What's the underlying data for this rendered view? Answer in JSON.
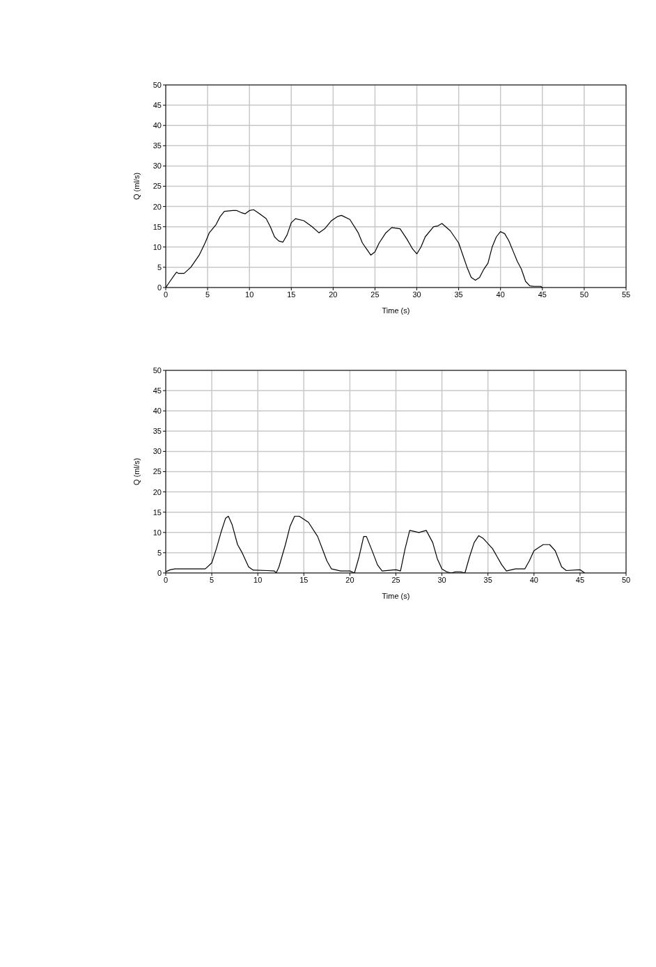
{
  "chart_data": [
    {
      "type": "line",
      "xlabel": "Time (s)",
      "ylabel": "Q (ml/s)",
      "xlim": [
        0,
        55
      ],
      "xticks": [
        0,
        5,
        10,
        15,
        20,
        25,
        30,
        35,
        40,
        45,
        50,
        55
      ],
      "ylim": [
        0,
        50
      ],
      "yticks": [
        0,
        5,
        10,
        15,
        20,
        25,
        30,
        35,
        40,
        45,
        50
      ],
      "grid": true,
      "marker": "none",
      "line_style": "solid",
      "series": [
        {
          "color": "#000000",
          "x": [
            0,
            0.5,
            1,
            1.3,
            1.5,
            2.2,
            3,
            4,
            4.7,
            5.2,
            6,
            6.5,
            7,
            8,
            8.5,
            9,
            9.5,
            10,
            10.5,
            11,
            12,
            12.5,
            13,
            13.5,
            14,
            14.5,
            15,
            15.5,
            16.5,
            17.5,
            18.3,
            19,
            19.8,
            20.5,
            21,
            22,
            23,
            23.5,
            24,
            24.5,
            25,
            25.5,
            26.3,
            27,
            28,
            28.8,
            29.5,
            30,
            30.5,
            31,
            32,
            32.5,
            33,
            34,
            35,
            35.5,
            36,
            36.5,
            37,
            37.5,
            38,
            38.5,
            39,
            39.5,
            40,
            40.5,
            41,
            41.5,
            42,
            42.5,
            43,
            43.5,
            44,
            44.8,
            45
          ],
          "values": [
            0,
            1.5,
            3,
            3.8,
            3.5,
            3.5,
            5,
            8,
            11,
            13.5,
            15.5,
            17.5,
            18.8,
            19,
            19,
            18.5,
            18.2,
            19,
            19.2,
            18.5,
            17,
            15,
            12.5,
            11.5,
            11.2,
            13,
            16,
            17,
            16.5,
            15,
            13.5,
            14.5,
            16.5,
            17.5,
            17.8,
            16.8,
            13.5,
            11,
            9.5,
            8,
            8.8,
            11,
            13.5,
            14.8,
            14.5,
            12,
            9.5,
            8.3,
            10,
            12.5,
            15,
            15.2,
            15.8,
            14,
            11,
            8,
            5,
            2.5,
            1.8,
            2.5,
            4.5,
            6,
            10,
            12.5,
            13.8,
            13.3,
            11.5,
            9,
            6.5,
            4.5,
            1.5,
            0.4,
            0.3,
            0.3,
            0
          ]
        }
      ]
    },
    {
      "type": "line",
      "xlabel": "Time (s)",
      "ylabel": "Q (ml/s)",
      "xlim": [
        0,
        50
      ],
      "xticks": [
        0,
        5,
        10,
        15,
        20,
        25,
        30,
        35,
        40,
        45,
        50
      ],
      "ylim": [
        0,
        50
      ],
      "yticks": [
        0,
        5,
        10,
        15,
        20,
        25,
        30,
        35,
        40,
        45,
        50
      ],
      "grid": true,
      "marker": "none",
      "line_style": "solid",
      "series": [
        {
          "color": "#000000",
          "x": [
            0,
            0.5,
            1,
            3,
            4.3,
            5,
            5.5,
            6,
            6.5,
            6.8,
            7.2,
            7.8,
            8.3,
            9,
            9.5,
            11,
            11.8,
            12,
            12.3,
            13,
            13.5,
            14,
            14.5,
            15.5,
            16.5,
            17,
            17.5,
            18,
            19,
            20,
            20.5,
            21,
            21.5,
            21.8,
            22.5,
            23,
            23.5,
            25,
            25.5,
            26,
            26.5,
            27.5,
            28.3,
            29,
            29.5,
            30,
            30.5,
            31,
            31.5,
            32,
            32.5,
            33,
            33.5,
            34,
            34.5,
            35.5,
            36,
            36.5,
            37,
            38,
            39,
            39.5,
            40,
            41,
            41.7,
            42.3,
            43,
            43.5,
            45,
            45.5
          ],
          "values": [
            0.3,
            0.8,
            1,
            1,
            1,
            2.5,
            6,
            10,
            13.5,
            14,
            12,
            7,
            5,
            1.5,
            0.7,
            0.6,
            0.5,
            0,
            1.5,
            7,
            11.5,
            14,
            14,
            12.5,
            9,
            6,
            3,
            1,
            0.5,
            0.5,
            0,
            4,
            9,
            9,
            5,
            2,
            0.5,
            0.8,
            0.5,
            6,
            10.5,
            10,
            10.5,
            7.5,
            3.5,
            1,
            0.3,
            0,
            0.3,
            0.3,
            0,
            4,
            7.5,
            9.2,
            8.5,
            6,
            4,
            2,
            0.5,
            1,
            1,
            3,
            5.5,
            7,
            7,
            5.5,
            1.5,
            0.6,
            0.8,
            0
          ]
        }
      ]
    }
  ]
}
